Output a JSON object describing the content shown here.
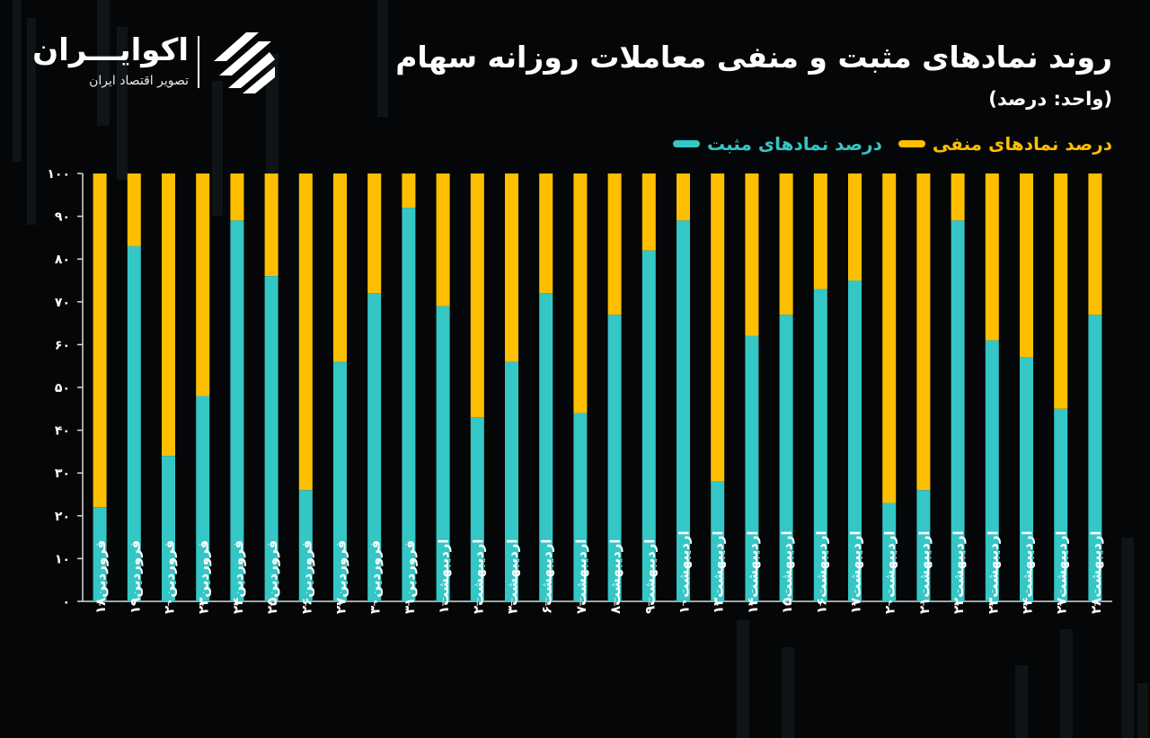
{
  "header": {
    "title": "روند نمادهای مثبت و منفی معاملات روزانه سهام",
    "unit": "(واحد: درصد)"
  },
  "brand": {
    "name": "اکوایـــران",
    "tagline": "تصویر اقتصاد ایران",
    "logo_icon": "ecoiran-stripes-logo-icon"
  },
  "colors": {
    "positive": "#35c6c6",
    "negative": "#fdbf00",
    "background": "#050607"
  },
  "chart_data": {
    "type": "bar",
    "stacked": true,
    "title": "روند نمادهای مثبت و منفی معاملات روزانه سهام",
    "ylim": [
      0,
      100
    ],
    "yticks": [
      "۰",
      "۱۰",
      "۲۰",
      "۳۰",
      "۴۰",
      "۵۰",
      "۶۰",
      "۷۰",
      "۸۰",
      "۹۰",
      "۱۰۰"
    ],
    "ytick_values": [
      0,
      10,
      20,
      30,
      40,
      50,
      60,
      70,
      80,
      90,
      100
    ],
    "legend_position": "top-right",
    "categories": [
      "فروردین۱۸",
      "فروردین۱۹",
      "فروردین۲۰",
      "فروردین۲۳",
      "فروردین۲۴",
      "فروردین۲۵",
      "فروردین۲۶",
      "فروردین۲۷",
      "فروردین۳۰",
      "فروردین۳۱",
      "اردیبهشت۱",
      "اردیبهشت۲",
      "اردیبهشت۳",
      "اردیبهشت۶",
      "اردیبهشت۷",
      "اردیبهشت۸",
      "اردیبهشت۹",
      "اردیبهشت۱۰",
      "اردیبهشت۱۳",
      "اردیبهشت۱۴",
      "اردیبهشت۱۵",
      "اردیبهشت۱۶",
      "اردیبهشت۱۷",
      "اردیبهشت۲۰",
      "اردیبهشت۲۱",
      "اردیبهشت۲۲",
      "اردیبهشت۲۳",
      "اردیبهشت۲۴",
      "اردیبهشت۲۷",
      "اردیبهشت۲۸"
    ],
    "series": [
      {
        "name": "درصد نمادهای مثبت",
        "values": [
          22,
          83,
          34,
          48,
          89,
          76,
          26,
          56,
          72,
          92,
          69,
          43,
          56,
          72,
          44,
          67,
          82,
          89,
          28,
          62,
          67,
          73,
          75,
          23,
          26,
          89,
          61,
          57,
          45,
          67
        ]
      },
      {
        "name": "درصد نمادهای منفی",
        "values": [
          78,
          17,
          66,
          52,
          11,
          24,
          74,
          44,
          28,
          8,
          31,
          57,
          44,
          28,
          56,
          33,
          18,
          11,
          72,
          38,
          33,
          27,
          25,
          77,
          74,
          11,
          39,
          43,
          55,
          33
        ]
      }
    ]
  }
}
